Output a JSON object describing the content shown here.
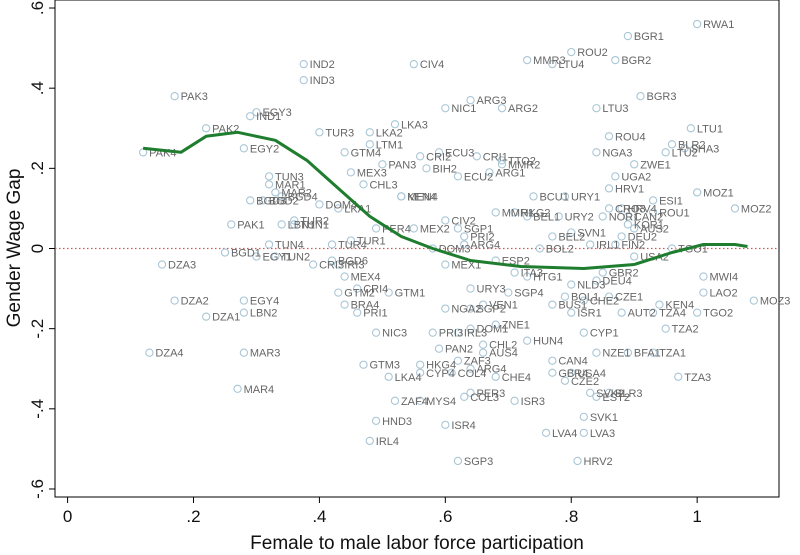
{
  "chart_data": {
    "type": "scatter",
    "xlabel": "Female to male labor force participation",
    "ylabel": "Gender Wage Gap",
    "xlim": [
      -0.02,
      1.13
    ],
    "ylim": [
      -0.62,
      0.62
    ],
    "xticks": [
      0,
      0.2,
      0.4,
      0.6,
      0.8,
      1
    ],
    "xtick_labels": [
      "0",
      ".2",
      ".4",
      ".6",
      ".8",
      "1"
    ],
    "yticks": [
      -0.6,
      -0.4,
      -0.2,
      0,
      0.2,
      0.4,
      0.6
    ],
    "ytick_labels": [
      "-.6",
      "-.4",
      "-.2",
      "0",
      ".2",
      ".4",
      ".6"
    ],
    "grid": false,
    "reference_line": {
      "y": 0,
      "style": "dotted",
      "color": "#d9534f"
    },
    "colors": {
      "marker": "#a9c6d6",
      "label": "#666666",
      "line": "#1e7d2e"
    },
    "points": [
      {
        "label": "RWA1",
        "x": 1.0,
        "y": 0.56
      },
      {
        "label": "BGR1",
        "x": 0.89,
        "y": 0.53
      },
      {
        "label": "ROU2",
        "x": 0.8,
        "y": 0.49
      },
      {
        "label": "MMR3",
        "x": 0.73,
        "y": 0.47
      },
      {
        "label": "LTU4",
        "x": 0.77,
        "y": 0.46
      },
      {
        "label": "BGR2",
        "x": 0.87,
        "y": 0.47
      },
      {
        "label": "CIV4",
        "x": 0.55,
        "y": 0.46
      },
      {
        "label": "IND2",
        "x": 0.375,
        "y": 0.46
      },
      {
        "label": "IND3",
        "x": 0.375,
        "y": 0.42
      },
      {
        "label": "PAK3",
        "x": 0.17,
        "y": 0.38
      },
      {
        "label": "BGR3",
        "x": 0.91,
        "y": 0.38
      },
      {
        "label": "ARG3",
        "x": 0.64,
        "y": 0.37
      },
      {
        "label": "ARG2",
        "x": 0.69,
        "y": 0.35
      },
      {
        "label": "NIC1",
        "x": 0.6,
        "y": 0.35
      },
      {
        "label": "LTU3",
        "x": 0.84,
        "y": 0.35
      },
      {
        "label": "EGY3",
        "x": 0.3,
        "y": 0.34
      },
      {
        "label": "IND1",
        "x": 0.29,
        "y": 0.33
      },
      {
        "label": "LKA3",
        "x": 0.52,
        "y": 0.31
      },
      {
        "label": "PAK2",
        "x": 0.22,
        "y": 0.3
      },
      {
        "label": "LTU1",
        "x": 0.99,
        "y": 0.3
      },
      {
        "label": "TUR3",
        "x": 0.4,
        "y": 0.29
      },
      {
        "label": "LKA2",
        "x": 0.48,
        "y": 0.29
      },
      {
        "label": "ROU4",
        "x": 0.86,
        "y": 0.28
      },
      {
        "label": "LTM1",
        "x": 0.48,
        "y": 0.26
      },
      {
        "label": "BLR2",
        "x": 0.96,
        "y": 0.26
      },
      {
        "label": "SHA3",
        "x": 0.98,
        "y": 0.25
      },
      {
        "label": "EGY2",
        "x": 0.28,
        "y": 0.25
      },
      {
        "label": "PAK4",
        "x": 0.12,
        "y": 0.24
      },
      {
        "label": "GTM4",
        "x": 0.44,
        "y": 0.24
      },
      {
        "label": "ECU3",
        "x": 0.59,
        "y": 0.24
      },
      {
        "label": "NGA3",
        "x": 0.84,
        "y": 0.24
      },
      {
        "label": "LTU2",
        "x": 0.95,
        "y": 0.24
      },
      {
        "label": "CRI2",
        "x": 0.56,
        "y": 0.23
      },
      {
        "label": "CRI1",
        "x": 0.65,
        "y": 0.23
      },
      {
        "label": "TTO2",
        "x": 0.69,
        "y": 0.22
      },
      {
        "label": "MMR2",
        "x": 0.69,
        "y": 0.21
      },
      {
        "label": "ZWE1",
        "x": 0.9,
        "y": 0.21
      },
      {
        "label": "PAN3",
        "x": 0.5,
        "y": 0.21
      },
      {
        "label": "BIH2",
        "x": 0.57,
        "y": 0.2
      },
      {
        "label": "ARG1",
        "x": 0.67,
        "y": 0.19
      },
      {
        "label": "MEX3",
        "x": 0.45,
        "y": 0.19
      },
      {
        "label": "ECU2",
        "x": 0.62,
        "y": 0.18
      },
      {
        "label": "UGA2",
        "x": 0.87,
        "y": 0.18
      },
      {
        "label": "TUN3",
        "x": 0.32,
        "y": 0.18
      },
      {
        "label": "MAR1",
        "x": 0.32,
        "y": 0.16
      },
      {
        "label": "CHL3",
        "x": 0.47,
        "y": 0.16
      },
      {
        "label": "HRV1",
        "x": 0.86,
        "y": 0.15
      },
      {
        "label": "MOZ1",
        "x": 1.0,
        "y": 0.14
      },
      {
        "label": "MAR2",
        "x": 0.33,
        "y": 0.14
      },
      {
        "label": "BGD4",
        "x": 0.34,
        "y": 0.13
      },
      {
        "label": "KEN4",
        "x": 0.53,
        "y": 0.13
      },
      {
        "label": "MEN4",
        "x": 0.53,
        "y": 0.13
      },
      {
        "label": "BGD2",
        "x": 0.31,
        "y": 0.12
      },
      {
        "label": "BGD3",
        "x": 0.29,
        "y": 0.12
      },
      {
        "label": "DOM4",
        "x": 0.4,
        "y": 0.11
      },
      {
        "label": "BCU1",
        "x": 0.74,
        "y": 0.13
      },
      {
        "label": "URY1",
        "x": 0.79,
        "y": 0.13
      },
      {
        "label": "ESI1",
        "x": 0.93,
        "y": 0.12
      },
      {
        "label": "MOZ2",
        "x": 1.06,
        "y": 0.1
      },
      {
        "label": "CRO3",
        "x": 0.86,
        "y": 0.1
      },
      {
        "label": "LKA1",
        "x": 0.43,
        "y": 0.1
      },
      {
        "label": "MMR1",
        "x": 0.68,
        "y": 0.09
      },
      {
        "label": "HKG2",
        "x": 0.71,
        "y": 0.09
      },
      {
        "label": "ROU1",
        "x": 0.93,
        "y": 0.09
      },
      {
        "label": "TUR2",
        "x": 0.36,
        "y": 0.07
      },
      {
        "label": "PAK1",
        "x": 0.26,
        "y": 0.06
      },
      {
        "label": "LBN1",
        "x": 0.34,
        "y": 0.06
      },
      {
        "label": "TUN1",
        "x": 0.36,
        "y": 0.06
      },
      {
        "label": "CIV2",
        "x": 0.6,
        "y": 0.07
      },
      {
        "label": "PER4",
        "x": 0.49,
        "y": 0.05
      },
      {
        "label": "MEX2",
        "x": 0.55,
        "y": 0.05
      },
      {
        "label": "BEL1",
        "x": 0.73,
        "y": 0.08
      },
      {
        "label": "URY2",
        "x": 0.78,
        "y": 0.08
      },
      {
        "label": "NOR1",
        "x": 0.85,
        "y": 0.08
      },
      {
        "label": "SGP1",
        "x": 0.62,
        "y": 0.05
      },
      {
        "label": "PRI2",
        "x": 0.63,
        "y": 0.03
      },
      {
        "label": "KOR1",
        "x": 0.89,
        "y": 0.06
      },
      {
        "label": "TUR1",
        "x": 0.45,
        "y": 0.02
      },
      {
        "label": "TUR4",
        "x": 0.42,
        "y": 0.01
      },
      {
        "label": "TUN4",
        "x": 0.32,
        "y": 0.01
      },
      {
        "label": "BGD1",
        "x": 0.25,
        "y": -0.01
      },
      {
        "label": "EGY1",
        "x": 0.3,
        "y": -0.02
      },
      {
        "label": "TUN2",
        "x": 0.33,
        "y": -0.02
      },
      {
        "label": "BGD6",
        "x": 0.42,
        "y": -0.03
      },
      {
        "label": "DOM3",
        "x": 0.58,
        "y": 0.0
      },
      {
        "label": "BOL2",
        "x": 0.75,
        "y": 0.0
      },
      {
        "label": "ARG4",
        "x": 0.63,
        "y": 0.01
      },
      {
        "label": "TGO1",
        "x": 0.96,
        "y": 0.0
      },
      {
        "label": "IRI3",
        "x": 0.43,
        "y": -0.04
      },
      {
        "label": "DZA3",
        "x": 0.15,
        "y": -0.04
      },
      {
        "label": "MEX1",
        "x": 0.6,
        "y": -0.04
      },
      {
        "label": "MEX4",
        "x": 0.44,
        "y": -0.07
      },
      {
        "label": "MWI4",
        "x": 1.01,
        "y": -0.07
      },
      {
        "label": "HTG1",
        "x": 0.73,
        "y": -0.07
      },
      {
        "label": "CRI4",
        "x": 0.46,
        "y": -0.1
      },
      {
        "label": "GTM2",
        "x": 0.43,
        "y": -0.11
      },
      {
        "label": "GTM1",
        "x": 0.51,
        "y": -0.11
      },
      {
        "label": "URY3",
        "x": 0.64,
        "y": -0.1
      },
      {
        "label": "EGY4",
        "x": 0.28,
        "y": -0.13
      },
      {
        "label": "DZA2",
        "x": 0.17,
        "y": -0.13
      },
      {
        "label": "BRA4",
        "x": 0.44,
        "y": -0.14
      },
      {
        "label": "LAO2",
        "x": 1.01,
        "y": -0.11
      },
      {
        "label": "KEN4",
        "x": 0.94,
        "y": -0.14
      },
      {
        "label": "MOZ3",
        "x": 1.09,
        "y": -0.13
      },
      {
        "label": "LBN2",
        "x": 0.28,
        "y": -0.16
      },
      {
        "label": "DZA1",
        "x": 0.22,
        "y": -0.17
      },
      {
        "label": "PRI1",
        "x": 0.46,
        "y": -0.16
      },
      {
        "label": "TGO2",
        "x": 1.0,
        "y": -0.16
      },
      {
        "label": "SGP2",
        "x": 0.64,
        "y": -0.15
      },
      {
        "label": "NGA2",
        "x": 0.6,
        "y": -0.15
      },
      {
        "label": "VEN1",
        "x": 0.66,
        "y": -0.14
      },
      {
        "label": "BUS1",
        "x": 0.77,
        "y": -0.14
      },
      {
        "label": "TZA4",
        "x": 0.93,
        "y": -0.16
      },
      {
        "label": "DOM1",
        "x": 0.64,
        "y": -0.2
      },
      {
        "label": "ZNE1",
        "x": 0.68,
        "y": -0.19
      },
      {
        "label": "TZA2",
        "x": 0.95,
        "y": -0.2
      },
      {
        "label": "NIC3",
        "x": 0.49,
        "y": -0.21
      },
      {
        "label": "PRI3",
        "x": 0.58,
        "y": -0.21
      },
      {
        "label": "IRL3",
        "x": 0.62,
        "y": -0.21
      },
      {
        "label": "CYP1",
        "x": 0.82,
        "y": -0.21
      },
      {
        "label": "HUN4",
        "x": 0.73,
        "y": -0.23
      },
      {
        "label": "PAN2",
        "x": 0.59,
        "y": -0.25
      },
      {
        "label": "CHL2",
        "x": 0.66,
        "y": -0.24
      },
      {
        "label": "AUS4",
        "x": 0.66,
        "y": -0.26
      },
      {
        "label": "ZAF3",
        "x": 0.62,
        "y": -0.28
      },
      {
        "label": "NZE1",
        "x": 0.84,
        "y": -0.26
      },
      {
        "label": "BFA1",
        "x": 0.89,
        "y": -0.26
      },
      {
        "label": "TZA1",
        "x": 0.93,
        "y": -0.26
      },
      {
        "label": "HKG4",
        "x": 0.56,
        "y": -0.29
      },
      {
        "label": "CAN4",
        "x": 0.77,
        "y": -0.28
      },
      {
        "label": "GTM3",
        "x": 0.47,
        "y": -0.29
      },
      {
        "label": "CYP4",
        "x": 0.56,
        "y": -0.31
      },
      {
        "label": "COL4",
        "x": 0.61,
        "y": -0.31
      },
      {
        "label": "ARG4",
        "x": 0.64,
        "y": -0.3
      },
      {
        "label": "GBR4",
        "x": 0.77,
        "y": -0.31
      },
      {
        "label": "USA4",
        "x": 0.8,
        "y": -0.31
      },
      {
        "label": "TZA3",
        "x": 0.97,
        "y": -0.32
      },
      {
        "label": "LKA4",
        "x": 0.51,
        "y": -0.32
      },
      {
        "label": "CHE4",
        "x": 0.68,
        "y": -0.32
      },
      {
        "label": "CZE2",
        "x": 0.79,
        "y": -0.33
      },
      {
        "label": "MAR3",
        "x": 0.28,
        "y": -0.26
      },
      {
        "label": "DZA4",
        "x": 0.13,
        "y": -0.26
      },
      {
        "label": "BLR3",
        "x": 0.86,
        "y": -0.36
      },
      {
        "label": "SVK2",
        "x": 0.83,
        "y": -0.36
      },
      {
        "label": "EST2",
        "x": 0.84,
        "y": -0.37
      },
      {
        "label": "PER3",
        "x": 0.64,
        "y": -0.36
      },
      {
        "label": "MAR4",
        "x": 0.27,
        "y": -0.35
      },
      {
        "label": "ZAF4",
        "x": 0.52,
        "y": -0.38
      },
      {
        "label": "MYS4",
        "x": 0.56,
        "y": -0.38
      },
      {
        "label": "COL3",
        "x": 0.63,
        "y": -0.37
      },
      {
        "label": "ISR3",
        "x": 0.71,
        "y": -0.38
      },
      {
        "label": "SVK1",
        "x": 0.82,
        "y": -0.42
      },
      {
        "label": "HND3",
        "x": 0.49,
        "y": -0.43
      },
      {
        "label": "ISR4",
        "x": 0.6,
        "y": -0.44
      },
      {
        "label": "LVA4",
        "x": 0.76,
        "y": -0.46
      },
      {
        "label": "LVA3",
        "x": 0.82,
        "y": -0.46
      },
      {
        "label": "IRL4",
        "x": 0.48,
        "y": -0.48
      },
      {
        "label": "SGP3",
        "x": 0.62,
        "y": -0.53
      },
      {
        "label": "HRV2",
        "x": 0.81,
        "y": -0.53
      },
      {
        "label": "CRI3",
        "x": 0.39,
        "y": -0.04
      },
      {
        "label": "HRV4",
        "x": 0.88,
        "y": 0.1
      },
      {
        "label": "CAN2",
        "x": 0.89,
        "y": 0.08
      },
      {
        "label": "AUS2",
        "x": 0.9,
        "y": 0.05
      },
      {
        "label": "DEU2",
        "x": 0.88,
        "y": 0.03
      },
      {
        "label": "FIN2",
        "x": 0.87,
        "y": 0.01
      },
      {
        "label": "USA2",
        "x": 0.9,
        "y": -0.02
      },
      {
        "label": "GBR2",
        "x": 0.85,
        "y": -0.06
      },
      {
        "label": "NLD3",
        "x": 0.8,
        "y": -0.09
      },
      {
        "label": "ITA3",
        "x": 0.71,
        "y": -0.06
      },
      {
        "label": "ESP2",
        "x": 0.68,
        "y": -0.03
      },
      {
        "label": "BEL2",
        "x": 0.77,
        "y": 0.03
      },
      {
        "label": "SVN1",
        "x": 0.8,
        "y": 0.04
      },
      {
        "label": "IRL1",
        "x": 0.83,
        "y": 0.01
      },
      {
        "label": "SGP4",
        "x": 0.7,
        "y": -0.11
      },
      {
        "label": "ISR1",
        "x": 0.8,
        "y": -0.16
      },
      {
        "label": "BOL1",
        "x": 0.79,
        "y": -0.12
      },
      {
        "label": "DEU4",
        "x": 0.84,
        "y": -0.08
      },
      {
        "label": "CHE2",
        "x": 0.82,
        "y": -0.13
      },
      {
        "label": "CZE1",
        "x": 0.86,
        "y": -0.12
      },
      {
        "label": "AUT2",
        "x": 0.88,
        "y": -0.16
      }
    ],
    "trend": [
      [
        0.12,
        0.25
      ],
      [
        0.18,
        0.24
      ],
      [
        0.22,
        0.28
      ],
      [
        0.27,
        0.29
      ],
      [
        0.33,
        0.27
      ],
      [
        0.38,
        0.22
      ],
      [
        0.43,
        0.15
      ],
      [
        0.48,
        0.08
      ],
      [
        0.53,
        0.03
      ],
      [
        0.58,
        0.0
      ],
      [
        0.64,
        -0.03
      ],
      [
        0.72,
        -0.045
      ],
      [
        0.82,
        -0.05
      ],
      [
        0.9,
        -0.04
      ],
      [
        0.96,
        -0.01
      ],
      [
        1.01,
        0.01
      ],
      [
        1.06,
        0.01
      ],
      [
        1.08,
        0.005
      ]
    ]
  }
}
